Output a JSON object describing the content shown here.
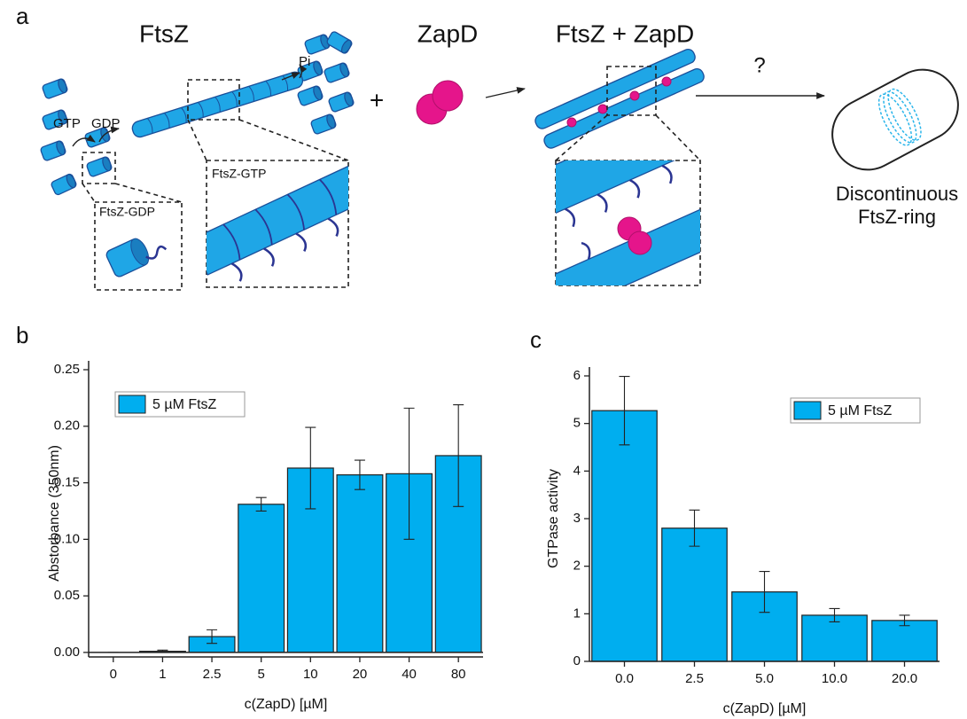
{
  "diagram": {
    "panel_label": "a",
    "titles": [
      "FtsZ",
      "ZapD",
      "FtsZ + ZapD"
    ],
    "labels": {
      "gtp": "GTP",
      "gdp": "GDP",
      "pi": "Pi",
      "plus": "+",
      "question": "?",
      "ftsz_gdp": "FtsZ-GDP",
      "ftsz_gtp": "FtsZ-GTP"
    },
    "result": [
      "Discontinuous",
      "FtsZ-ring"
    ]
  },
  "chart_data": [
    {
      "type": "bar",
      "panel_label": "b",
      "ylabel": "Abstorbance (350nm)",
      "xlabel": "c(ZapD) [µM]",
      "categories": [
        "0",
        "1",
        "2.5",
        "5",
        "10",
        "20",
        "40",
        "80"
      ],
      "series": [
        {
          "name": "5 µM FtsZ",
          "color": "#00aeef",
          "values": [
            0.0,
            0.001,
            0.014,
            0.131,
            0.163,
            0.157,
            0.158,
            0.174
          ],
          "errors": [
            0.0,
            0.001,
            0.006,
            0.006,
            0.036,
            0.013,
            0.058,
            0.045
          ]
        }
      ],
      "ylim": [
        -0.004,
        0.25
      ],
      "yticks": [
        {
          "value": 0,
          "label": "0.00"
        },
        0.05,
        {
          "value": 0.1,
          "label": "0.10"
        },
        0.15,
        {
          "value": 0.2,
          "label": "0.20"
        },
        0.25
      ],
      "legend": "upper left"
    },
    {
      "type": "bar",
      "panel_label": "c",
      "ylabel": "GTPase activity",
      "xlabel": "c(ZapD) [µM]",
      "categories": [
        "0.0",
        "2.5",
        "5.0",
        "10.0",
        "20.0"
      ],
      "series": [
        {
          "name": "5 µM FtsZ",
          "color": "#00aeef",
          "values": [
            5.27,
            2.8,
            1.46,
            0.97,
            0.86
          ],
          "errors": [
            0.72,
            0.38,
            0.43,
            0.14,
            0.11
          ]
        }
      ],
      "ylim": [
        0,
        6
      ],
      "yticks": [
        0,
        1,
        2,
        3,
        4,
        5,
        6
      ],
      "legend": "upper right"
    }
  ]
}
